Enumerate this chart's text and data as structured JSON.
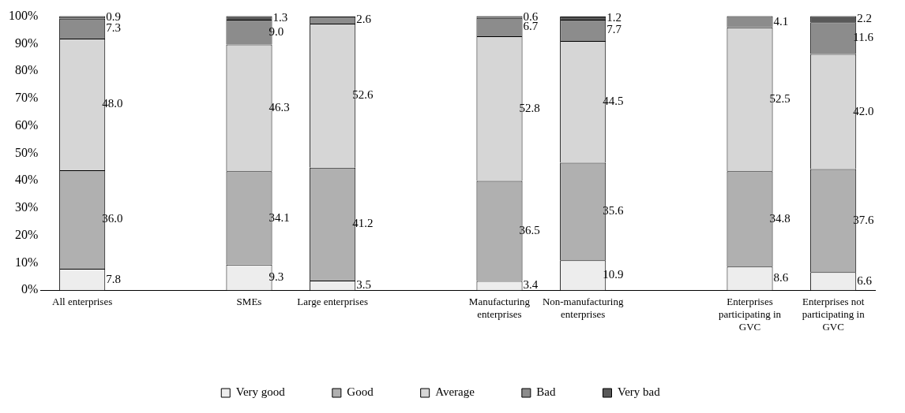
{
  "chart_data": {
    "type": "bar",
    "stacked": true,
    "legend": "bottom",
    "categories": [
      "All enterprises",
      null,
      "SMEs",
      "Large enterprises",
      null,
      "Manufacturing enterprises",
      "Non-manufacturing enterprises",
      null,
      "Enterprises participating in GVC",
      "Enterprises not participating in GVC"
    ],
    "ylim": [
      0,
      100
    ],
    "yticks": [
      {
        "value": 0,
        "label": "0%"
      },
      {
        "value": 10,
        "label": "10%"
      },
      {
        "value": 20,
        "label": "20%"
      },
      {
        "value": 30,
        "label": "30%"
      },
      {
        "value": 40,
        "label": "40%"
      },
      {
        "value": 50,
        "label": "50%"
      },
      {
        "value": 60,
        "label": "60%"
      },
      {
        "value": 70,
        "label": "70%"
      },
      {
        "value": 80,
        "label": "80%"
      },
      {
        "value": 90,
        "label": "90%"
      },
      {
        "value": 100,
        "label": "100%"
      }
    ],
    "series": [
      {
        "name": "Very good",
        "color": "#ededed",
        "values": [
          7.8,
          null,
          9.3,
          3.5,
          null,
          3.4,
          10.9,
          null,
          8.6,
          6.6
        ],
        "value_labels": [
          "7.8",
          null,
          "9.3",
          "3.5",
          null,
          "3.4",
          "10.9",
          null,
          "8.6",
          "6.6"
        ]
      },
      {
        "name": "Good",
        "color": "#b0b0b0",
        "values": [
          36.0,
          null,
          34.1,
          41.2,
          null,
          36.5,
          35.6,
          null,
          34.8,
          37.6
        ],
        "value_labels": [
          "36.0",
          null,
          "34.1",
          "41.2",
          null,
          "36.5",
          "35.6",
          null,
          "34.8",
          "37.6"
        ]
      },
      {
        "name": "Average",
        "color": "#d6d6d6",
        "values": [
          48.0,
          null,
          46.3,
          52.6,
          null,
          52.8,
          44.5,
          null,
          52.5,
          42.0
        ],
        "value_labels": [
          "48.0",
          null,
          "46.3",
          "52.6",
          null,
          "52.8",
          "44.5",
          null,
          "52.5",
          "42.0"
        ]
      },
      {
        "name": "Bad",
        "color": "#8c8c8c",
        "values": [
          7.3,
          null,
          9.0,
          2.6,
          null,
          6.7,
          7.7,
          null,
          4.1,
          11.6
        ],
        "value_labels": [
          "7.3",
          null,
          "9.0",
          "2.6",
          null,
          "6.7",
          "7.7",
          null,
          "4.1",
          "11.6"
        ]
      },
      {
        "name": "Very bad",
        "color": "#595959",
        "values": [
          0.9,
          null,
          1.3,
          null,
          null,
          0.6,
          1.2,
          null,
          null,
          2.2
        ],
        "value_labels": [
          "0.9",
          null,
          "1.3",
          null,
          null,
          "0.6",
          "1.2",
          null,
          null,
          "2.2"
        ]
      }
    ]
  }
}
